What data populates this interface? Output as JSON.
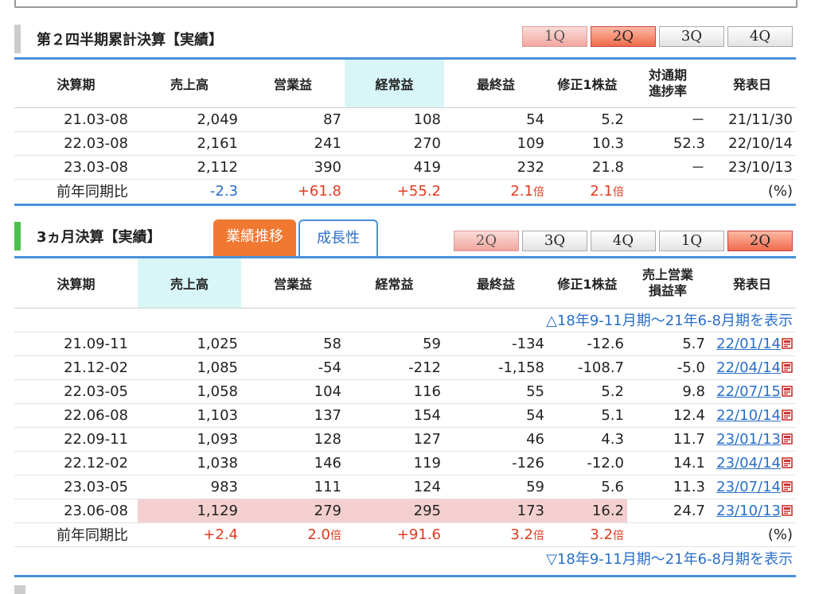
{
  "cumulative": {
    "title": "第２四半期累計決算【実績】",
    "quarter_tabs": [
      "1Q",
      "2Q",
      "3Q",
      "4Q"
    ],
    "columns": [
      "決算期",
      "売上高",
      "営業益",
      "経常益",
      "最終益",
      "修正1株益",
      "対通期\n進捗率",
      "発表日"
    ],
    "rows": [
      [
        "21.03-08",
        "2,049",
        "87",
        "108",
        "54",
        "5.2",
        "－",
        "21/11/30"
      ],
      [
        "22.03-08",
        "2,161",
        "241",
        "270",
        "109",
        "10.3",
        "52.3",
        "22/10/14"
      ],
      [
        "23.03-08",
        "2,112",
        "390",
        "419",
        "232",
        "21.8",
        "－",
        "23/10/13"
      ]
    ],
    "yoy": {
      "label": "前年同期比",
      "sales": "-2.3",
      "op": "+61.8",
      "ord": "+55.2",
      "net_num": "2.1",
      "net_unit": "倍",
      "eps_num": "2.1",
      "eps_unit": "倍",
      "pct": "(%)"
    }
  },
  "quarterly": {
    "title": "3ヵ月決算【実績】",
    "tab_perf": "業績推移",
    "tab_growth": "成長性",
    "quarter_tabs": [
      "2Q",
      "3Q",
      "4Q",
      "1Q",
      "2Q"
    ],
    "columns": [
      "決算期",
      "売上高",
      "営業益",
      "経常益",
      "最終益",
      "修正1株益",
      "売上営業\n損益率",
      "発表日"
    ],
    "show_prev": "△18年9-11月期～21年6-8月期を表示",
    "show_next": "▽18年9-11月期～21年6-8月期を表示",
    "rows": [
      [
        "21.09-11",
        "1,025",
        "58",
        "59",
        "-134",
        "-12.6",
        "5.7",
        "22/01/14"
      ],
      [
        "21.12-02",
        "1,085",
        "-54",
        "-212",
        "-1,158",
        "-108.7",
        "-5.0",
        "22/04/14"
      ],
      [
        "22.03-05",
        "1,058",
        "104",
        "116",
        "55",
        "5.2",
        "9.8",
        "22/07/15"
      ],
      [
        "22.06-08",
        "1,103",
        "137",
        "154",
        "54",
        "5.1",
        "12.4",
        "22/10/14"
      ],
      [
        "22.09-11",
        "1,093",
        "128",
        "127",
        "46",
        "4.3",
        "11.7",
        "23/01/13"
      ],
      [
        "22.12-02",
        "1,038",
        "146",
        "119",
        "-126",
        "-12.0",
        "14.1",
        "23/04/14"
      ],
      [
        "23.03-05",
        "983",
        "111",
        "124",
        "59",
        "5.6",
        "11.3",
        "23/07/14"
      ],
      [
        "23.06-08",
        "1,129",
        "279",
        "295",
        "173",
        "16.2",
        "24.7",
        "23/10/13"
      ]
    ],
    "yoy": {
      "label": "前年同期比",
      "sales": "+2.4",
      "op_num": "2.0",
      "op_unit": "倍",
      "ord": "+91.6",
      "net_num": "3.2",
      "net_unit": "倍",
      "eps_num": "3.2",
      "eps_unit": "倍",
      "pct": "(%)"
    }
  },
  "colors": {
    "accent_blue": "#4a90d9",
    "green_bar": "#4cc24c",
    "gray_bar": "#cccccc",
    "positive": "#e03a1e",
    "negative": "#2a6fc9",
    "highlight": "#f4cfd0",
    "tab_orange": "#f07830"
  }
}
